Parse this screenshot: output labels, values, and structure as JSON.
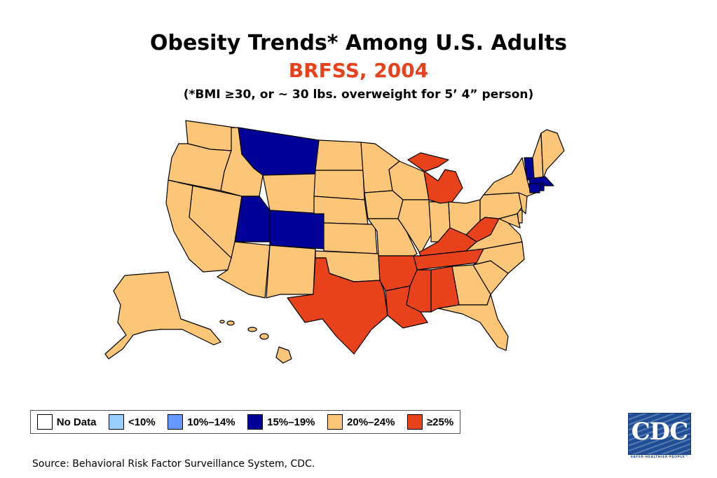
{
  "title": "Obesity Trends* Among U.S. Adults",
  "subtitle": "BRFSS, 2004",
  "note": "(*BMI ≥30, or ~ 30 lbs. overweight for 5’ 4” person)",
  "colors": {
    "no_data": "#ffffff",
    "lt10": "#99ccff",
    "10_14": "#6699ff",
    "15_19": "#000099",
    "20_24": "#fcc679",
    "gte25": "#e8421c"
  },
  "legend": [
    {
      "label": "No Data",
      "color": "#ffffff"
    },
    {
      "label": "<10%",
      "color": "#99ccff"
    },
    {
      "label": "10%–14%",
      "color": "#6699ff"
    },
    {
      "label": "15%–19%",
      "color": "#000099"
    },
    {
      "label": "20%–24%",
      "color": "#fcc679"
    },
    {
      "label": "≥25%",
      "color": "#e8421c"
    }
  ],
  "categories": {
    "15_19": [
      "MT",
      "UT",
      "CO",
      "VT",
      "MA",
      "CT",
      "RI"
    ],
    "gte25": [
      "TX",
      "AR",
      "LA",
      "MS",
      "AL",
      "TN",
      "KY",
      "WV",
      "MI"
    ]
  },
  "source": "Source: Behavioral Risk Factor Surveillance System, CDC.",
  "logo": {
    "text": "CDC",
    "tagline": "SAFER·HEALTHIER·PEOPLE™"
  }
}
